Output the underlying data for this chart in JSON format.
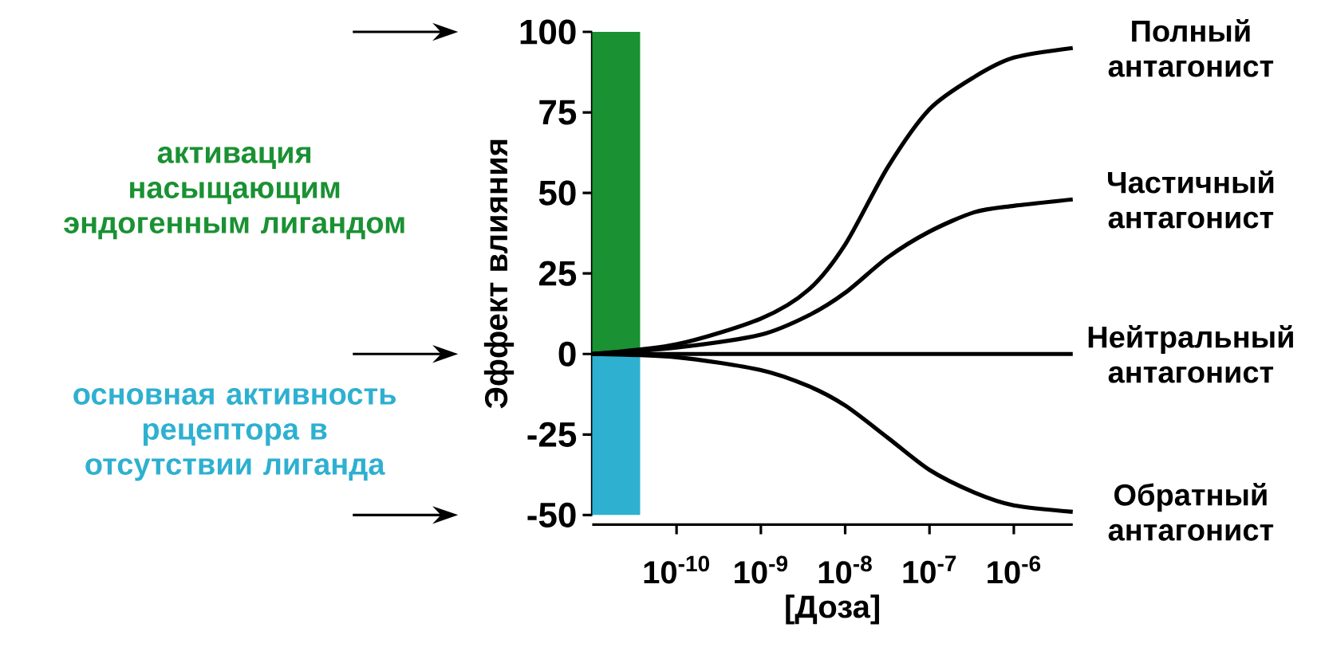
{
  "chart_data": {
    "type": "line",
    "xlabel": "[Доза]",
    "ylabel": "Эффект влияния",
    "log": "x",
    "marker": "none",
    "line_style": "solid",
    "xlim": [
      1e-11,
      5e-06
    ],
    "ylim": [
      -50,
      100
    ],
    "xticks": [
      {
        "value": 1e-10,
        "label": "10$^{-10}$"
      },
      {
        "value": 1e-09,
        "label": "10$^{-9}$"
      },
      {
        "value": 1e-08,
        "label": "10$^{-8}$"
      },
      {
        "value": 1e-07,
        "label": "10$^{-7}$"
      },
      {
        "value": 1e-06,
        "label": "10$^{-6}$"
      }
    ],
    "yticks": [
      -50,
      -25,
      0,
      25,
      50,
      75,
      100
    ],
    "x": [
      1e-11,
      1e-10,
      1e-09,
      3.7e-09,
      1e-08,
      3.2e-08,
      1e-07,
      3.4e-07,
      1e-06,
      5e-06
    ],
    "series": [
      {
        "name": "Полный антагонист",
        "color": "#000000",
        "values": [
          0,
          3,
          11,
          20,
          34,
          58,
          76,
          86,
          92,
          95
        ]
      },
      {
        "name": "Частичный антагонист",
        "color": "#000000",
        "values": [
          0,
          2,
          6,
          12,
          19,
          30,
          38,
          44,
          46,
          48
        ]
      },
      {
        "name": "Нейтральный антагонист",
        "color": "#000000",
        "values": [
          0,
          0,
          0,
          0,
          0,
          0,
          0,
          0,
          0,
          0
        ]
      },
      {
        "name": "Обратный антагонист",
        "color": "#000000",
        "values": [
          0,
          -1,
          -5,
          -10,
          -16,
          -26,
          -36,
          -43,
          -47,
          -49
        ]
      }
    ],
    "bands": [
      {
        "axis": "y",
        "from": 0,
        "to": 100,
        "label": "активация насыщающим эндогенным лигандом",
        "color": "#1a9133"
      },
      {
        "axis": "y",
        "from": -50,
        "to": 0,
        "label": "основная активность рецептора в отсутствии лиганда",
        "color": "#2eb0d0"
      }
    ]
  }
}
